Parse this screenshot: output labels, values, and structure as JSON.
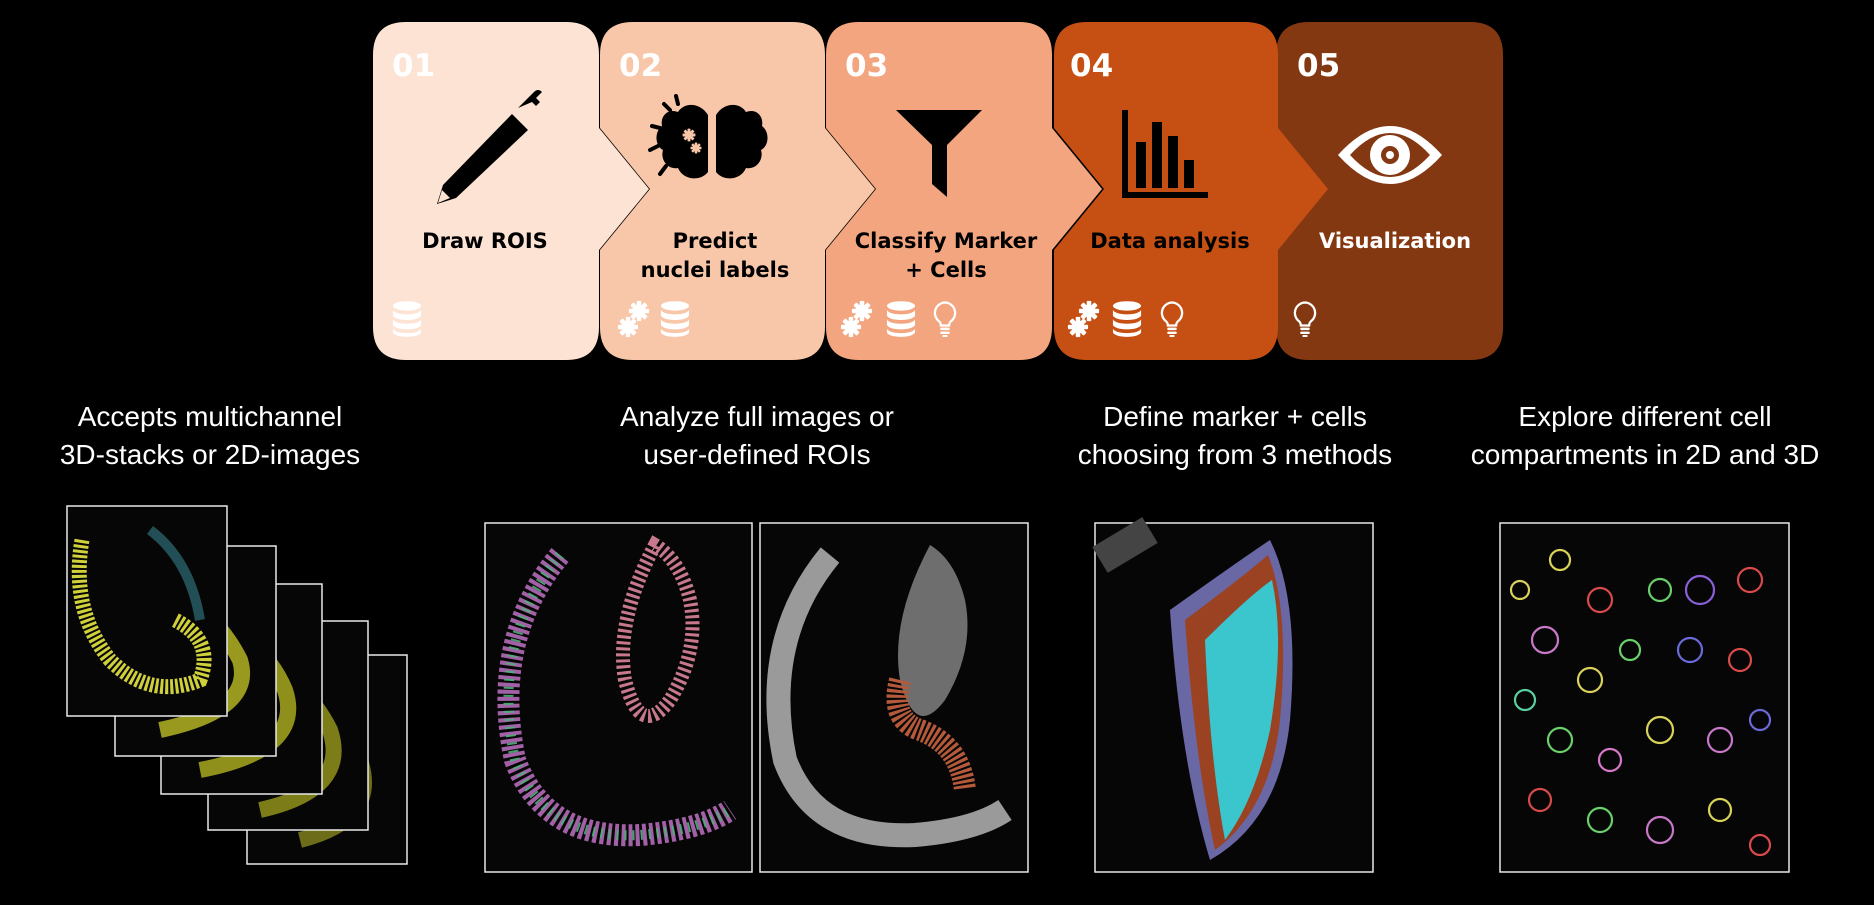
{
  "steps": [
    {
      "number": "01",
      "label_lines": [
        "Draw ROIS"
      ],
      "icon": "pencil-icon",
      "badges": [
        "database-icon"
      ],
      "color": "#fce3d4",
      "text_color": "#000000",
      "badge_color": "#ffffff"
    },
    {
      "number": "02",
      "label_lines": [
        "Predict",
        "nuclei labels"
      ],
      "icon": "brain-gears-icon",
      "badges": [
        "gears-icon",
        "database-icon"
      ],
      "color": "#f8c6a8",
      "text_color": "#000000",
      "badge_color": "#ffffff"
    },
    {
      "number": "03",
      "label_lines": [
        "Classify Marker",
        "+ Cells"
      ],
      "icon": "funnel-icon",
      "badges": [
        "gears-icon",
        "database-icon",
        "lightbulb-icon"
      ],
      "color": "#f2a57e",
      "text_color": "#000000",
      "badge_color": "#ffffff"
    },
    {
      "number": "04",
      "label_lines": [
        "Data analysis"
      ],
      "icon": "bar-chart-icon",
      "badges": [
        "gears-icon",
        "database-icon",
        "lightbulb-icon"
      ],
      "color": "#c65014",
      "text_color": "#000000",
      "badge_color": "#ffffff"
    },
    {
      "number": "05",
      "label_lines": [
        "Visualization"
      ],
      "icon": "eye-icon",
      "badges": [
        "lightbulb-icon"
      ],
      "color": "#843811",
      "text_color": "#ffffff",
      "badge_color": "#ffffff"
    }
  ],
  "captions": [
    {
      "lines": [
        "Accepts multichannel",
        "3D-stacks or 2D-images"
      ]
    },
    {
      "lines": [
        "Analyze full images or",
        "user-defined ROIs"
      ]
    },
    {
      "lines": [
        "Define marker + cells",
        "choosing from 3 methods"
      ]
    },
    {
      "lines": [
        "Explore different cell",
        "compartments in 2D and 3D"
      ]
    }
  ]
}
